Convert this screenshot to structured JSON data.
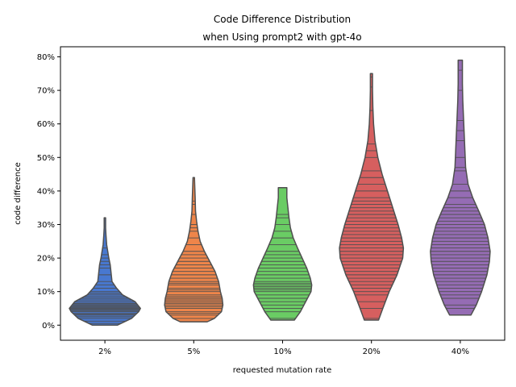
{
  "chart_data": {
    "type": "violin",
    "title": "Code Difference Distribution\nwhen Using prompt2 with gpt-4o",
    "title_lines": [
      "Code Difference Distribution",
      "when Using prompt2 with gpt-4o"
    ],
    "xlabel": "requested mutation rate",
    "ylabel": "code difference",
    "categories": [
      "2%",
      "5%",
      "10%",
      "20%",
      "40%"
    ],
    "y_ticks": [
      0,
      10,
      20,
      30,
      40,
      50,
      60,
      70,
      80
    ],
    "y_tick_labels": [
      "0%",
      "10%",
      "20%",
      "30%",
      "40%",
      "50%",
      "60%",
      "70%",
      "80%"
    ],
    "ylim": [
      -4.5,
      83
    ],
    "grid": false,
    "inner": "stick",
    "cut": 0,
    "colors": [
      "#4878d0",
      "#ee854a",
      "#6acc64",
      "#d65f5f",
      "#956cb4"
    ],
    "edge_color": "#4f4f4f",
    "series": [
      {
        "category": "2%",
        "min": 0,
        "max": 32,
        "profile": [
          [
            0,
            0.35
          ],
          [
            2,
            0.75
          ],
          [
            4,
            0.95
          ],
          [
            5,
            1.0
          ],
          [
            7,
            0.85
          ],
          [
            9,
            0.5
          ],
          [
            11,
            0.33
          ],
          [
            13,
            0.2
          ],
          [
            16,
            0.17
          ],
          [
            18,
            0.15
          ],
          [
            20,
            0.11
          ],
          [
            22,
            0.08
          ],
          [
            24,
            0.05
          ],
          [
            27,
            0.03
          ],
          [
            29,
            0.02
          ],
          [
            32,
            0.02
          ]
        ],
        "values": [
          0.5,
          1.2,
          2,
          2.5,
          3,
          3.2,
          3.5,
          4,
          4.2,
          4.5,
          4.8,
          5,
          5.2,
          5.5,
          5.8,
          6,
          6.3,
          6.5,
          7,
          7.5,
          8,
          8.5,
          9,
          9.5,
          10,
          11,
          12,
          13,
          15,
          17,
          18,
          19,
          20,
          21,
          23
        ]
      },
      {
        "category": "5%",
        "min": 1,
        "max": 44,
        "profile": [
          [
            1,
            0.38
          ],
          [
            2,
            0.58
          ],
          [
            4,
            0.78
          ],
          [
            6,
            0.82
          ],
          [
            8,
            0.8
          ],
          [
            10,
            0.75
          ],
          [
            13,
            0.7
          ],
          [
            16,
            0.6
          ],
          [
            19,
            0.45
          ],
          [
            22,
            0.3
          ],
          [
            25,
            0.18
          ],
          [
            28,
            0.12
          ],
          [
            31,
            0.08
          ],
          [
            34,
            0.05
          ],
          [
            38,
            0.04
          ],
          [
            41,
            0.03
          ],
          [
            44,
            0.02
          ]
        ],
        "values": [
          1,
          2,
          3,
          3.5,
          4,
          5,
          5.5,
          6,
          6.5,
          7,
          7.5,
          8,
          8.5,
          9,
          10,
          10.5,
          11,
          12,
          12.5,
          13,
          14,
          15,
          16,
          17,
          18,
          19,
          20,
          21,
          22,
          24,
          26,
          28,
          29,
          30,
          33,
          36,
          37
        ]
      },
      {
        "category": "10%",
        "min": 1.5,
        "max": 41,
        "profile": [
          [
            1.5,
            0.33
          ],
          [
            4,
            0.5
          ],
          [
            7,
            0.65
          ],
          [
            10,
            0.8
          ],
          [
            12,
            0.82
          ],
          [
            14,
            0.78
          ],
          [
            17,
            0.68
          ],
          [
            20,
            0.55
          ],
          [
            23,
            0.42
          ],
          [
            26,
            0.3
          ],
          [
            29,
            0.22
          ],
          [
            32,
            0.18
          ],
          [
            35,
            0.15
          ],
          [
            38,
            0.12
          ],
          [
            41,
            0.12
          ]
        ],
        "values": [
          2,
          4,
          5,
          6,
          7,
          8,
          9,
          10,
          10.5,
          11,
          11.5,
          12,
          12.5,
          13,
          14,
          15,
          16,
          17,
          18,
          19,
          20,
          21,
          22,
          24,
          26,
          28,
          30,
          32,
          33
        ]
      },
      {
        "category": "20%",
        "min": 1.5,
        "max": 75,
        "profile": [
          [
            1.5,
            0.2
          ],
          [
            5,
            0.32
          ],
          [
            10,
            0.5
          ],
          [
            15,
            0.72
          ],
          [
            20,
            0.88
          ],
          [
            23,
            0.9
          ],
          [
            26,
            0.85
          ],
          [
            30,
            0.75
          ],
          [
            35,
            0.6
          ],
          [
            40,
            0.45
          ],
          [
            45,
            0.3
          ],
          [
            50,
            0.18
          ],
          [
            55,
            0.1
          ],
          [
            60,
            0.06
          ],
          [
            65,
            0.04
          ],
          [
            70,
            0.03
          ],
          [
            75,
            0.03
          ]
        ],
        "values": [
          2,
          5,
          7,
          9,
          10,
          11,
          12,
          13,
          14,
          15,
          16,
          17,
          18,
          19,
          20,
          21,
          22,
          23,
          24,
          25,
          26,
          27,
          28,
          29,
          30,
          31,
          32,
          33,
          34,
          35,
          36,
          37,
          38,
          40,
          42,
          44,
          46,
          50,
          52,
          54,
          64,
          71,
          74
        ]
      },
      {
        "category": "40%",
        "min": 3,
        "max": 79,
        "profile": [
          [
            3,
            0.3
          ],
          [
            6,
            0.45
          ],
          [
            10,
            0.6
          ],
          [
            15,
            0.75
          ],
          [
            19,
            0.82
          ],
          [
            22,
            0.84
          ],
          [
            26,
            0.78
          ],
          [
            30,
            0.68
          ],
          [
            34,
            0.52
          ],
          [
            38,
            0.35
          ],
          [
            42,
            0.22
          ],
          [
            47,
            0.15
          ],
          [
            52,
            0.13
          ],
          [
            57,
            0.11
          ],
          [
            62,
            0.09
          ],
          [
            67,
            0.07
          ],
          [
            72,
            0.06
          ],
          [
            76,
            0.06
          ],
          [
            79,
            0.06
          ]
        ],
        "values": [
          3,
          5,
          6,
          8,
          9,
          10,
          11,
          12,
          13,
          14,
          15,
          16,
          17,
          18,
          19,
          20,
          21,
          22,
          23,
          24,
          25,
          26,
          27,
          28,
          29,
          30,
          31,
          32,
          33,
          34,
          35,
          36,
          38,
          40,
          42,
          46,
          47,
          50,
          55,
          58,
          61,
          70,
          76
        ]
      }
    ]
  }
}
